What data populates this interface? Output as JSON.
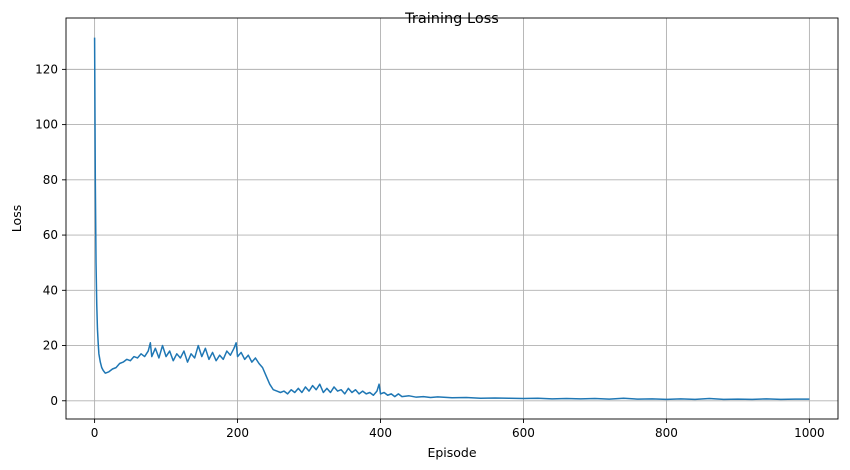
{
  "chart_data": {
    "type": "line",
    "title": "Training Loss",
    "xlabel": "Episode",
    "ylabel": "Loss",
    "xlim": [
      -40,
      1040
    ],
    "ylim": [
      -6.6,
      138.6
    ],
    "xticks": [
      0,
      200,
      400,
      600,
      800,
      1000
    ],
    "yticks": [
      0,
      20,
      40,
      60,
      80,
      100,
      120
    ],
    "grid": true,
    "legend": "none",
    "series": [
      {
        "color": "#1f77b4",
        "x": [
          0,
          1,
          2,
          3,
          4,
          5,
          6,
          8,
          10,
          12,
          15,
          20,
          25,
          30,
          35,
          40,
          45,
          50,
          55,
          60,
          65,
          70,
          75,
          78,
          80,
          85,
          90,
          95,
          100,
          105,
          110,
          115,
          120,
          125,
          130,
          135,
          140,
          145,
          150,
          155,
          160,
          165,
          170,
          175,
          180,
          185,
          190,
          195,
          198,
          200,
          205,
          210,
          215,
          220,
          225,
          230,
          235,
          240,
          245,
          250,
          255,
          260,
          265,
          270,
          275,
          280,
          285,
          290,
          295,
          300,
          305,
          310,
          315,
          320,
          325,
          330,
          335,
          340,
          345,
          350,
          355,
          360,
          365,
          370,
          375,
          380,
          385,
          390,
          395,
          398,
          400,
          405,
          410,
          415,
          420,
          425,
          430,
          440,
          450,
          460,
          470,
          480,
          500,
          520,
          540,
          560,
          580,
          600,
          620,
          640,
          660,
          680,
          700,
          720,
          740,
          760,
          780,
          800,
          820,
          840,
          860,
          880,
          900,
          920,
          940,
          960,
          980,
          1000
        ],
        "y": [
          131.5,
          80,
          50,
          35,
          26,
          21,
          17,
          14,
          12,
          11,
          10,
          10.5,
          11.5,
          12,
          13.5,
          14,
          15,
          14.5,
          16,
          15.5,
          17,
          16,
          18,
          21,
          16,
          19,
          15.5,
          20,
          16,
          18,
          14.5,
          17,
          15.5,
          18,
          14,
          17,
          15.5,
          20,
          16,
          19,
          15,
          17.5,
          14.5,
          16.5,
          15,
          18,
          16.5,
          19,
          21,
          16,
          17.5,
          15,
          16.5,
          14,
          15.5,
          13.5,
          12,
          9,
          6,
          4,
          3.5,
          3,
          3.5,
          2.5,
          4,
          3,
          4.5,
          3,
          5,
          3.5,
          5.5,
          4,
          6,
          3,
          4.5,
          3,
          5,
          3.5,
          4,
          2.5,
          4.5,
          3,
          4,
          2.5,
          3.5,
          2.5,
          3,
          2,
          3.5,
          6,
          2.5,
          3,
          2,
          2.5,
          1.5,
          2.5,
          1.5,
          1.8,
          1.3,
          1.5,
          1.2,
          1.4,
          1.1,
          1.2,
          0.9,
          1,
          0.9,
          0.8,
          0.9,
          0.7,
          0.8,
          0.7,
          0.8,
          0.6,
          0.9,
          0.6,
          0.7,
          0.5,
          0.7,
          0.5,
          0.8,
          0.5,
          0.6,
          0.5,
          0.7,
          0.5,
          0.6,
          0.6
        ]
      }
    ]
  }
}
